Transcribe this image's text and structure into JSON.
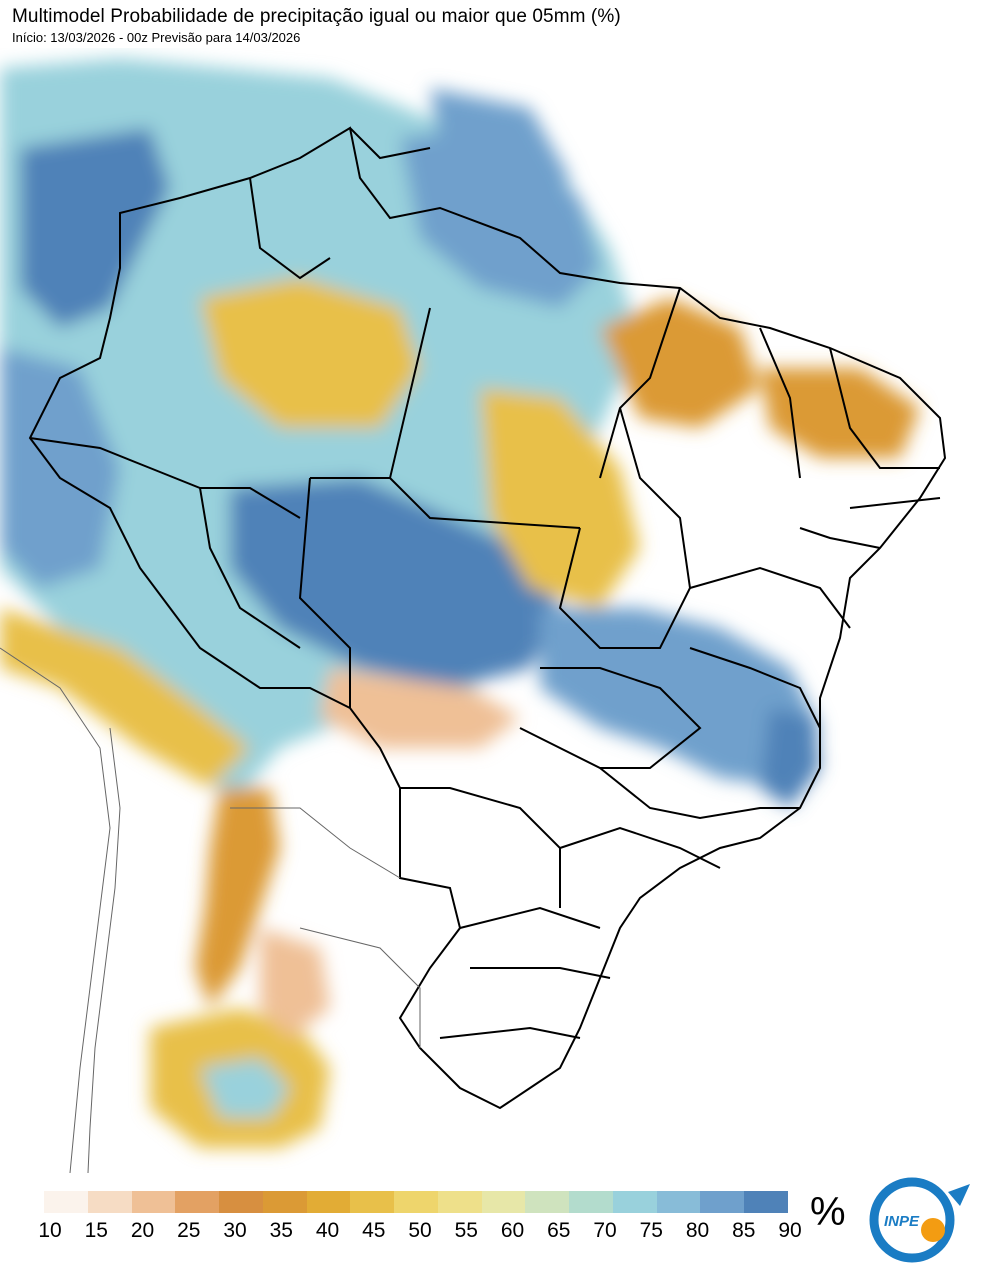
{
  "title": "Multimodel Probabilidade de precipitação igual ou maior que 05mm (%)",
  "subtitle": "Início: 13/03/2026 - 00z  Previsão para 14/03/2026",
  "colorbar": {
    "ticks": [
      "10",
      "15",
      "20",
      "25",
      "30",
      "35",
      "40",
      "45",
      "50",
      "55",
      "60",
      "65",
      "70",
      "75",
      "80",
      "85",
      "90"
    ],
    "unit": "%",
    "colors": [
      "#fbf3ec",
      "#f6dcc4",
      "#efc096",
      "#e3a163",
      "#d78f40",
      "#db9a35",
      "#e2ac35",
      "#e8c04a",
      "#eed56c",
      "#eee08a",
      "#e7e7a8",
      "#cfe3be",
      "#b3dccd",
      "#99d1dc",
      "#88bcd8",
      "#6fa0cc",
      "#4f82b8"
    ]
  },
  "logo": {
    "label": "INPE",
    "colors": {
      "primary": "#1a7cc4",
      "accent": "#f39c12"
    }
  },
  "map": {
    "colors": {
      "very_wet": "#4f82b8",
      "wet": "#6fa0cc",
      "moist": "#99d1dc",
      "mid": "#e8c04a",
      "dry": "#db9a35",
      "very_dry": "#efc096",
      "border": "#000000",
      "coast": "#555555"
    }
  }
}
